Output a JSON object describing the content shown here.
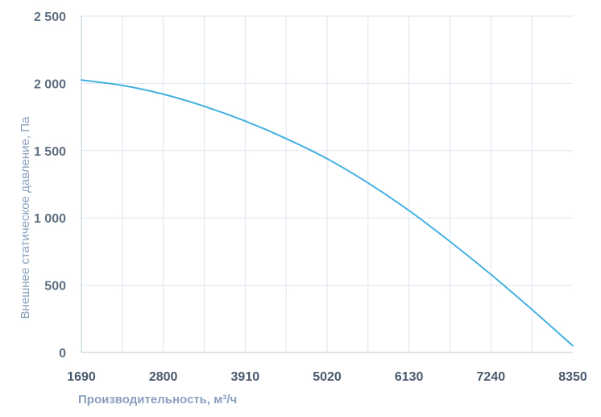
{
  "chart_data": {
    "type": "line",
    "title": "",
    "xlabel": "Производительность, м³/ч",
    "ylabel": "Внешнее  статическое  давление, Па",
    "x_ticks": [
      "1690",
      "2800",
      "3910",
      "5020",
      "6130",
      "7240",
      "8350"
    ],
    "y_ticks": [
      "0",
      "500",
      "1 000",
      "1 500",
      "2 000",
      "2 500"
    ],
    "xlim": [
      1690,
      8350
    ],
    "ylim": [
      0,
      2500
    ],
    "grid": true,
    "series": [
      {
        "x": [
          1690,
          2245,
          2800,
          3355,
          3910,
          4465,
          5020,
          5575,
          6130,
          6685,
          7240,
          7795,
          8350
        ],
        "values": [
          2025,
          1985,
          1920,
          1830,
          1720,
          1590,
          1440,
          1260,
          1055,
          825,
          580,
          320,
          50
        ]
      }
    ],
    "colors": {
      "line": "#45b0e2",
      "grid": "#dde5ee",
      "axis": "#b8c8da"
    }
  }
}
